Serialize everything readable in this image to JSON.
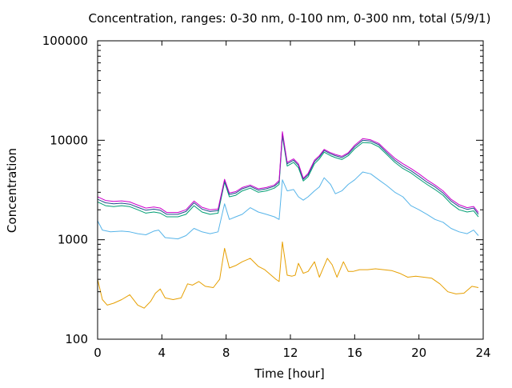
{
  "chart_data": {
    "type": "line",
    "title": "Concentration, ranges: 0-30 nm, 0-100 nm, 0-300 nm, total (5/9/1)",
    "xlabel": "Time [hour]",
    "ylabel": "Concentration",
    "xlim": [
      0,
      24
    ],
    "ylim": [
      100,
      100000
    ],
    "yscale": "log",
    "grid": false,
    "x_ticks": [
      "0",
      "4",
      "8",
      "12",
      "16",
      "20",
      "24"
    ],
    "y_ticks": [
      "100",
      "1000",
      "10000",
      "100000"
    ],
    "series": [
      {
        "color": "#e69f00",
        "points": [
          [
            0,
            400
          ],
          [
            0.3,
            250
          ],
          [
            0.6,
            220
          ],
          [
            1,
            230
          ],
          [
            1.5,
            250
          ],
          [
            2,
            280
          ],
          [
            2.5,
            220
          ],
          [
            2.9,
            205
          ],
          [
            3.3,
            240
          ],
          [
            3.6,
            290
          ],
          [
            3.9,
            320
          ],
          [
            4.2,
            260
          ],
          [
            4.7,
            250
          ],
          [
            5.2,
            260
          ],
          [
            5.6,
            360
          ],
          [
            5.9,
            350
          ],
          [
            6.3,
            380
          ],
          [
            6.7,
            340
          ],
          [
            7.2,
            330
          ],
          [
            7.6,
            400
          ],
          [
            7.9,
            820
          ],
          [
            8.2,
            520
          ],
          [
            8.6,
            550
          ],
          [
            9.0,
            600
          ],
          [
            9.5,
            650
          ],
          [
            10.0,
            540
          ],
          [
            10.4,
            500
          ],
          [
            10.8,
            440
          ],
          [
            11.1,
            400
          ],
          [
            11.3,
            380
          ],
          [
            11.5,
            950
          ],
          [
            11.8,
            440
          ],
          [
            12.1,
            430
          ],
          [
            12.3,
            440
          ],
          [
            12.5,
            580
          ],
          [
            12.8,
            460
          ],
          [
            13.1,
            480
          ],
          [
            13.5,
            600
          ],
          [
            13.8,
            420
          ],
          [
            14.0,
            500
          ],
          [
            14.3,
            650
          ],
          [
            14.6,
            560
          ],
          [
            14.9,
            420
          ],
          [
            15.3,
            600
          ],
          [
            15.6,
            480
          ],
          [
            15.9,
            480
          ],
          [
            16.3,
            500
          ],
          [
            16.8,
            500
          ],
          [
            17.3,
            510
          ],
          [
            17.8,
            500
          ],
          [
            18.3,
            490
          ],
          [
            18.8,
            460
          ],
          [
            19.3,
            420
          ],
          [
            19.8,
            430
          ],
          [
            20.3,
            420
          ],
          [
            20.8,
            410
          ],
          [
            21.3,
            360
          ],
          [
            21.8,
            300
          ],
          [
            22.3,
            285
          ],
          [
            22.8,
            290
          ],
          [
            23.3,
            340
          ],
          [
            23.7,
            330
          ]
        ]
      },
      {
        "color": "#56b4e9",
        "points": [
          [
            0,
            1550
          ],
          [
            0.3,
            1250
          ],
          [
            0.8,
            1200
          ],
          [
            1.5,
            1220
          ],
          [
            2,
            1200
          ],
          [
            2.5,
            1150
          ],
          [
            3,
            1120
          ],
          [
            3.5,
            1220
          ],
          [
            3.8,
            1250
          ],
          [
            4.2,
            1050
          ],
          [
            5,
            1020
          ],
          [
            5.5,
            1100
          ],
          [
            6.0,
            1300
          ],
          [
            6.5,
            1200
          ],
          [
            7.0,
            1150
          ],
          [
            7.5,
            1200
          ],
          [
            7.9,
            2300
          ],
          [
            8.2,
            1600
          ],
          [
            8.6,
            1700
          ],
          [
            9.0,
            1800
          ],
          [
            9.5,
            2100
          ],
          [
            10.0,
            1900
          ],
          [
            10.5,
            1800
          ],
          [
            11.0,
            1700
          ],
          [
            11.3,
            1600
          ],
          [
            11.5,
            4000
          ],
          [
            11.8,
            3100
          ],
          [
            12.2,
            3200
          ],
          [
            12.5,
            2700
          ],
          [
            12.8,
            2500
          ],
          [
            13.1,
            2700
          ],
          [
            13.5,
            3100
          ],
          [
            13.8,
            3400
          ],
          [
            14.1,
            4200
          ],
          [
            14.5,
            3600
          ],
          [
            14.8,
            2900
          ],
          [
            15.2,
            3100
          ],
          [
            15.6,
            3600
          ],
          [
            16.0,
            4000
          ],
          [
            16.5,
            4800
          ],
          [
            17.0,
            4600
          ],
          [
            17.5,
            4000
          ],
          [
            18.0,
            3500
          ],
          [
            18.5,
            3000
          ],
          [
            19.0,
            2700
          ],
          [
            19.5,
            2200
          ],
          [
            20.0,
            2000
          ],
          [
            20.5,
            1800
          ],
          [
            21.0,
            1600
          ],
          [
            21.5,
            1500
          ],
          [
            22.0,
            1300
          ],
          [
            22.5,
            1200
          ],
          [
            23.0,
            1150
          ],
          [
            23.4,
            1250
          ],
          [
            23.7,
            1100
          ]
        ]
      },
      {
        "color": "#009e73",
        "points": [
          [
            0,
            2400
          ],
          [
            0.5,
            2200
          ],
          [
            1,
            2150
          ],
          [
            1.5,
            2200
          ],
          [
            2,
            2150
          ],
          [
            2.5,
            2000
          ],
          [
            3,
            1850
          ],
          [
            3.5,
            1900
          ],
          [
            3.9,
            1850
          ],
          [
            4.3,
            1700
          ],
          [
            5,
            1700
          ],
          [
            5.5,
            1800
          ],
          [
            6.0,
            2200
          ],
          [
            6.5,
            1900
          ],
          [
            7.0,
            1800
          ],
          [
            7.5,
            1850
          ],
          [
            7.9,
            3800
          ],
          [
            8.2,
            2700
          ],
          [
            8.6,
            2800
          ],
          [
            9.0,
            3100
          ],
          [
            9.5,
            3300
          ],
          [
            10.0,
            3000
          ],
          [
            10.5,
            3100
          ],
          [
            11.0,
            3300
          ],
          [
            11.3,
            3600
          ],
          [
            11.5,
            11000
          ],
          [
            11.8,
            5500
          ],
          [
            12.2,
            6000
          ],
          [
            12.5,
            5300
          ],
          [
            12.8,
            3900
          ],
          [
            13.1,
            4300
          ],
          [
            13.5,
            5800
          ],
          [
            13.8,
            6500
          ],
          [
            14.1,
            7600
          ],
          [
            14.5,
            7000
          ],
          [
            14.8,
            6700
          ],
          [
            15.2,
            6400
          ],
          [
            15.6,
            7000
          ],
          [
            16.0,
            8200
          ],
          [
            16.5,
            9500
          ],
          [
            17.0,
            9400
          ],
          [
            17.5,
            8600
          ],
          [
            18.0,
            7200
          ],
          [
            18.5,
            6000
          ],
          [
            19.0,
            5200
          ],
          [
            19.5,
            4700
          ],
          [
            20.0,
            4100
          ],
          [
            20.5,
            3600
          ],
          [
            21.0,
            3200
          ],
          [
            21.5,
            2800
          ],
          [
            22.0,
            2300
          ],
          [
            22.5,
            2000
          ],
          [
            23.0,
            1900
          ],
          [
            23.4,
            1950
          ],
          [
            23.7,
            1700
          ]
        ]
      },
      {
        "color": "#1f4e8c",
        "points": [
          [
            0,
            2550
          ],
          [
            0.5,
            2350
          ],
          [
            1,
            2300
          ],
          [
            1.5,
            2330
          ],
          [
            2,
            2280
          ],
          [
            2.5,
            2120
          ],
          [
            3,
            1980
          ],
          [
            3.5,
            2030
          ],
          [
            3.9,
            1980
          ],
          [
            4.3,
            1800
          ],
          [
            5,
            1800
          ],
          [
            5.5,
            1920
          ],
          [
            6.0,
            2350
          ],
          [
            6.5,
            2030
          ],
          [
            7.0,
            1920
          ],
          [
            7.5,
            1960
          ],
          [
            7.9,
            3950
          ],
          [
            8.2,
            2850
          ],
          [
            8.6,
            2950
          ],
          [
            9.0,
            3250
          ],
          [
            9.5,
            3450
          ],
          [
            10.0,
            3150
          ],
          [
            10.5,
            3250
          ],
          [
            11.0,
            3450
          ],
          [
            11.3,
            3800
          ],
          [
            11.5,
            11800
          ],
          [
            11.8,
            5800
          ],
          [
            12.2,
            6300
          ],
          [
            12.5,
            5600
          ],
          [
            12.8,
            4050
          ],
          [
            13.1,
            4500
          ],
          [
            13.5,
            6100
          ],
          [
            13.8,
            6800
          ],
          [
            14.1,
            7900
          ],
          [
            14.5,
            7300
          ],
          [
            14.8,
            7000
          ],
          [
            15.2,
            6700
          ],
          [
            15.6,
            7300
          ],
          [
            16.0,
            8600
          ],
          [
            16.5,
            10000
          ],
          [
            17.0,
            9800
          ],
          [
            17.5,
            9000
          ],
          [
            18.0,
            7500
          ],
          [
            18.5,
            6300
          ],
          [
            19.0,
            5500
          ],
          [
            19.5,
            4950
          ],
          [
            20.0,
            4350
          ],
          [
            20.5,
            3800
          ],
          [
            21.0,
            3400
          ],
          [
            21.5,
            2950
          ],
          [
            22.0,
            2450
          ],
          [
            22.5,
            2150
          ],
          [
            23.0,
            2020
          ],
          [
            23.4,
            2080
          ],
          [
            23.7,
            1800
          ]
        ]
      },
      {
        "color": "#cc00cc",
        "points": [
          [
            0,
            2700
          ],
          [
            0.5,
            2480
          ],
          [
            1,
            2430
          ],
          [
            1.5,
            2460
          ],
          [
            2,
            2400
          ],
          [
            2.5,
            2230
          ],
          [
            3,
            2080
          ],
          [
            3.5,
            2130
          ],
          [
            3.9,
            2080
          ],
          [
            4.3,
            1880
          ],
          [
            5,
            1880
          ],
          [
            5.5,
            2000
          ],
          [
            6.0,
            2450
          ],
          [
            6.5,
            2120
          ],
          [
            7.0,
            2000
          ],
          [
            7.5,
            2040
          ],
          [
            7.9,
            4050
          ],
          [
            8.2,
            2950
          ],
          [
            8.6,
            3050
          ],
          [
            9.0,
            3350
          ],
          [
            9.5,
            3550
          ],
          [
            10.0,
            3250
          ],
          [
            10.5,
            3350
          ],
          [
            11.0,
            3550
          ],
          [
            11.3,
            3950
          ],
          [
            11.5,
            12200
          ],
          [
            11.8,
            6000
          ],
          [
            12.2,
            6500
          ],
          [
            12.5,
            5800
          ],
          [
            12.8,
            4150
          ],
          [
            13.1,
            4650
          ],
          [
            13.5,
            6300
          ],
          [
            13.8,
            7000
          ],
          [
            14.1,
            8100
          ],
          [
            14.5,
            7500
          ],
          [
            14.8,
            7200
          ],
          [
            15.2,
            6900
          ],
          [
            15.6,
            7500
          ],
          [
            16.0,
            8900
          ],
          [
            16.5,
            10400
          ],
          [
            17.0,
            10100
          ],
          [
            17.5,
            9300
          ],
          [
            18.0,
            7800
          ],
          [
            18.5,
            6600
          ],
          [
            19.0,
            5800
          ],
          [
            19.5,
            5200
          ],
          [
            20.0,
            4600
          ],
          [
            20.5,
            4000
          ],
          [
            21.0,
            3550
          ],
          [
            21.5,
            3100
          ],
          [
            22.0,
            2550
          ],
          [
            22.5,
            2250
          ],
          [
            23.0,
            2100
          ],
          [
            23.4,
            2160
          ],
          [
            23.7,
            1880
          ]
        ]
      }
    ]
  }
}
